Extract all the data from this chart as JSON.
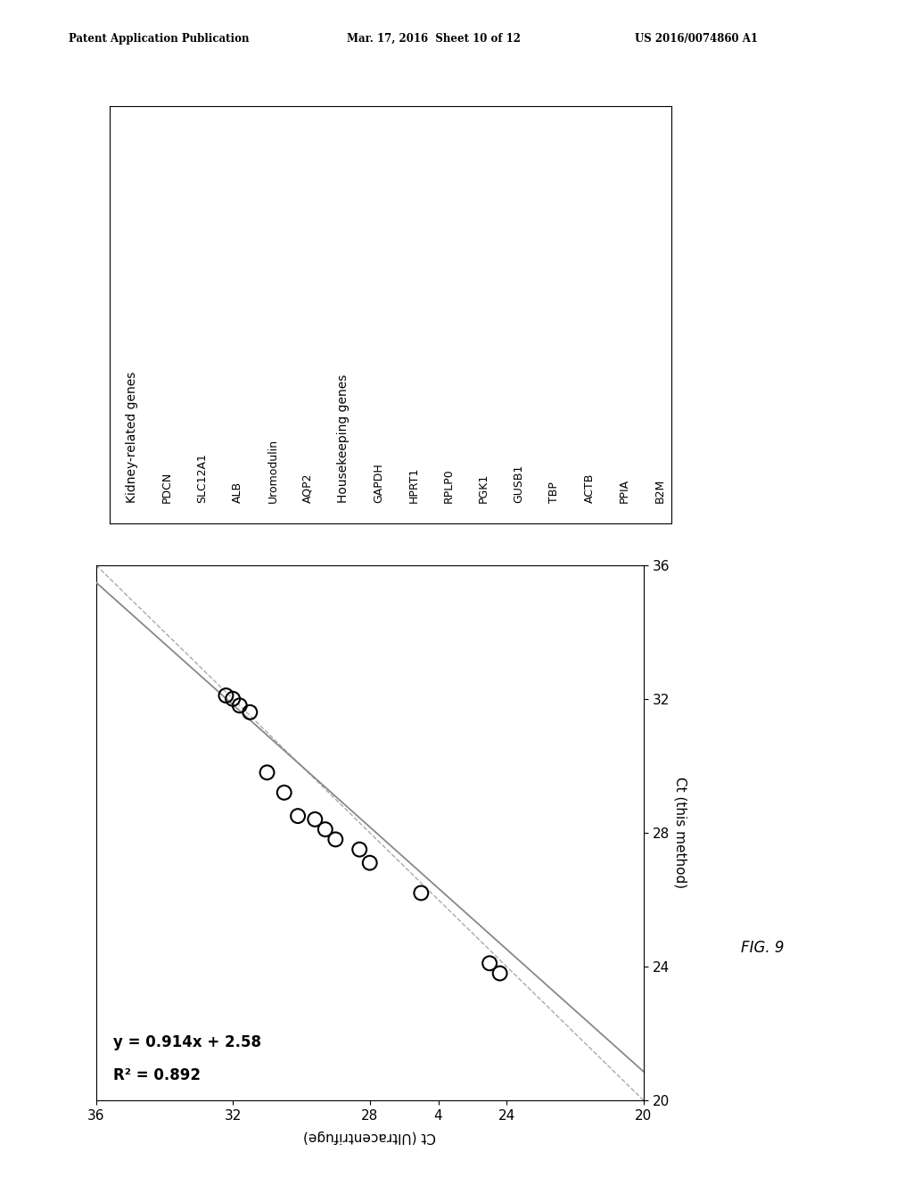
{
  "scatter_x": [
    24.2,
    24.5,
    26.5,
    28.0,
    28.3,
    29.0,
    29.3,
    29.6,
    30.1,
    30.5,
    31.0,
    31.5,
    31.8,
    32.0,
    32.2
  ],
  "scatter_y": [
    23.8,
    24.1,
    26.2,
    27.1,
    27.5,
    27.8,
    28.1,
    28.4,
    28.5,
    29.2,
    29.8,
    31.6,
    31.8,
    32.0,
    32.1
  ],
  "reg_slope": 0.914,
  "reg_intercept": 2.58,
  "r_squared": 0.892,
  "x_label": "Ct (Ultracentrifuge)",
  "y_label": "Ct (this method)",
  "axis_min": 20,
  "axis_max": 36,
  "x_ticks": [
    36,
    32,
    28,
    4,
    24,
    20
  ],
  "y_ticks": [
    20,
    24,
    28,
    32,
    36
  ],
  "x_tick_labels": [
    "36",
    "32",
    "28",
    "4",
    "24",
    "20"
  ],
  "equation_text": "y = 0.914x + 2.58",
  "r2_text": "R² = 0.892",
  "fig_label": "FIG. 9",
  "header_left": "Patent Application Publication",
  "header_center": "Mar. 17, 2016  Sheet 10 of 12",
  "header_right": "US 2016/0074860 A1",
  "legend_items": [
    "Kidney-related genes",
    "PDCN",
    "SLC12A1",
    "ALB",
    "Uromodulin",
    "AQP2",
    "Housekeeping genes",
    "GAPDH",
    "HPRT1",
    "RPLP0",
    "PGK1",
    "GUSB1",
    "TBP",
    "ACTB",
    "PPIA",
    "B2M"
  ],
  "legend_header_indices": [
    0,
    6
  ],
  "background_color": "#ffffff",
  "scatter_edge_color": "#000000",
  "line_color": "#888888",
  "dotted_line_color": "#aaaaaa"
}
